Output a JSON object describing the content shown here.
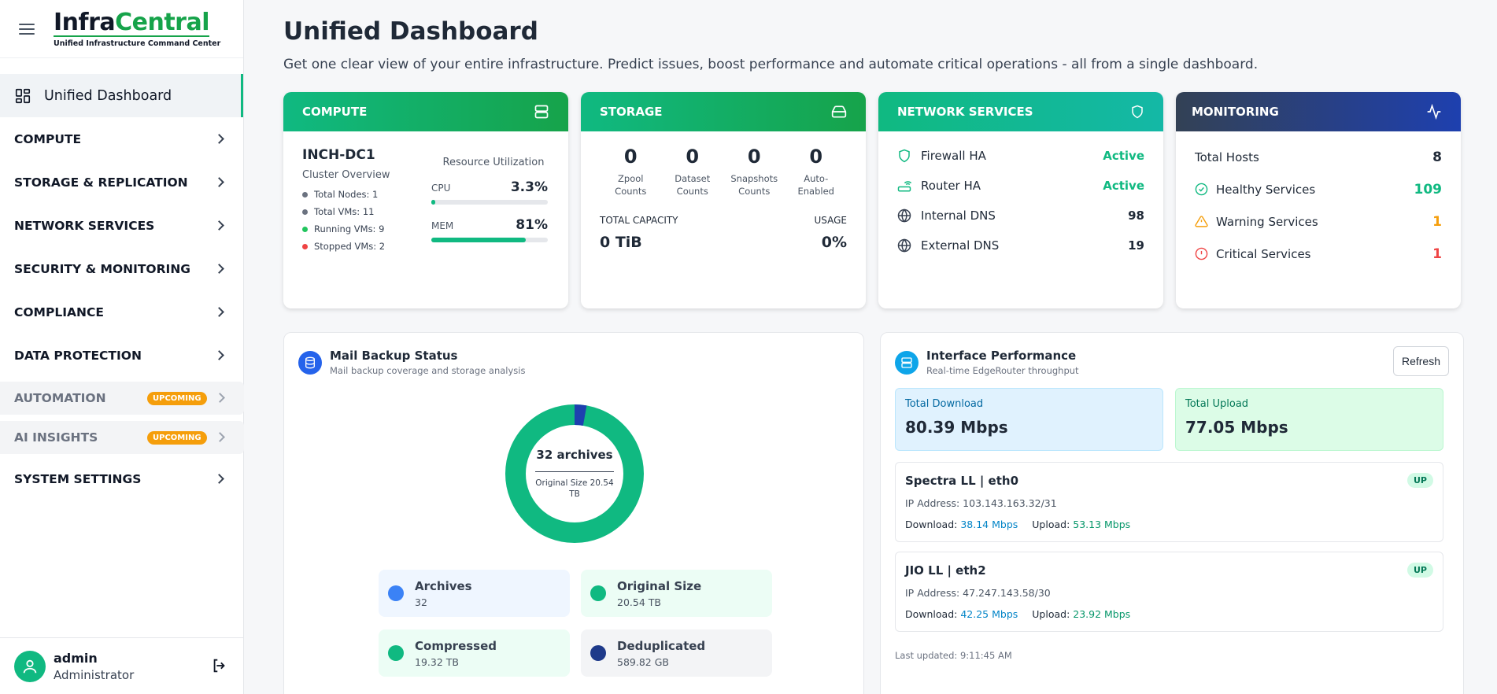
{
  "brand": {
    "logo_part1": "Infra",
    "logo_part2": "Central",
    "tagline": "Unified Infrastructure Command Center"
  },
  "sidebar": {
    "active_item": "Unified Dashboard",
    "items": [
      {
        "label": "COMPUTE"
      },
      {
        "label": "STORAGE & REPLICATION"
      },
      {
        "label": "NETWORK SERVICES"
      },
      {
        "label": "SECURITY & MONITORING"
      },
      {
        "label": "COMPLIANCE"
      },
      {
        "label": "DATA PROTECTION"
      },
      {
        "label": "AUTOMATION",
        "badge": "UPCOMING"
      },
      {
        "label": "AI INSIGHTS",
        "badge": "UPCOMING"
      },
      {
        "label": "SYSTEM SETTINGS"
      }
    ]
  },
  "user": {
    "name": "admin",
    "role": "Administrator"
  },
  "header": {
    "title": "Unified Dashboard",
    "subtitle": "Get one clear view of your entire infrastructure. Predict issues, boost performance and automate critical operations - all from a single dashboard."
  },
  "compute": {
    "title": "COMPUTE",
    "cluster_name": "INCH-DC1",
    "cluster_label": "Cluster Overview",
    "stats": [
      {
        "label": "Total Nodes: 1",
        "color": "#6b7280"
      },
      {
        "label": "Total VMs: 11",
        "color": "#6b7280"
      },
      {
        "label": "Running VMs: 9",
        "color": "#22c55e"
      },
      {
        "label": "Stopped VMs: 2",
        "color": "#ef4444"
      }
    ],
    "util_title": "Resource Utilization",
    "cpu_label": "CPU",
    "cpu_value": "3.3%",
    "cpu_fraction": 0.033,
    "mem_label": "MEM",
    "mem_value": "81%",
    "mem_fraction": 0.81
  },
  "storage": {
    "title": "STORAGE",
    "counts": [
      {
        "value": "0",
        "label_line1": "Zpool",
        "label_line2": "Counts"
      },
      {
        "value": "0",
        "label_line1": "Dataset",
        "label_line2": "Counts"
      },
      {
        "value": "0",
        "label_line1": "Snapshots",
        "label_line2": "Counts"
      },
      {
        "value": "0",
        "label_line1": "Auto-",
        "label_line2": "Enabled"
      }
    ],
    "capacity_label": "TOTAL CAPACITY",
    "capacity_value": "0 TiB",
    "usage_label": "USAGE",
    "usage_value": "0%"
  },
  "network": {
    "title": "NETWORK SERVICES",
    "rows": [
      {
        "label": "Firewall HA",
        "value": "Active",
        "icon": "shield-icon"
      },
      {
        "label": "Router HA",
        "value": "Active",
        "icon": "router-icon"
      },
      {
        "label": "Internal DNS",
        "value": "98",
        "icon": "globe-icon"
      },
      {
        "label": "External DNS",
        "value": "19",
        "icon": "globe-icon"
      }
    ]
  },
  "monitoring": {
    "title": "MONITORING",
    "total_hosts_label": "Total Hosts",
    "total_hosts_value": "8",
    "rows": [
      {
        "label": "Healthy Services",
        "value": "109",
        "color": "#10b981",
        "icon": "check-circle-icon"
      },
      {
        "label": "Warning Services",
        "value": "1",
        "color": "#f59e0b",
        "icon": "warning-icon"
      },
      {
        "label": "Critical Services",
        "value": "1",
        "color": "#ef4444",
        "icon": "alert-circle-icon"
      }
    ]
  },
  "mail_backup": {
    "title": "Mail Backup Status",
    "subtitle": "Mail backup coverage and storage analysis",
    "center_big": "32 archives",
    "center_small": "Original Size 20.54 TB",
    "donut_deduplicated_fraction": 0.028,
    "legend": [
      {
        "label": "Archives",
        "value": "32",
        "color": "#3b82f6",
        "bg": "#eff6ff"
      },
      {
        "label": "Original Size",
        "value": "20.54 TB",
        "color": "#10b981",
        "bg": "#ecfdf5"
      },
      {
        "label": "Compressed",
        "value": "19.32 TB",
        "color": "#10b981",
        "bg": "#ecfdf5"
      },
      {
        "label": "Deduplicated",
        "value": "589.82 GB",
        "color": "#1e3a8a",
        "bg": "#f3f4f6"
      }
    ]
  },
  "interface": {
    "title": "Interface Performance",
    "subtitle": "Real-time EdgeRouter throughput",
    "refresh_label": "Refresh",
    "total_download_label": "Total Download",
    "total_download_value": "80.39 Mbps",
    "total_upload_label": "Total Upload",
    "total_upload_value": "77.05 Mbps",
    "interfaces": [
      {
        "name": "Spectra LL | eth0",
        "status": "UP",
        "ip": "IP Address: 103.143.163.32/31",
        "download_label": "Download:",
        "download": "38.14 Mbps",
        "upload_label": "Upload:",
        "upload": "53.13 Mbps"
      },
      {
        "name": "JIO LL | eth2",
        "status": "UP",
        "ip": "IP Address: 47.247.143.58/30",
        "download_label": "Download:",
        "download": "42.25 Mbps",
        "upload_label": "Upload:",
        "upload": "23.92 Mbps"
      }
    ],
    "last_updated": "Last updated: 9:11:45 AM"
  }
}
